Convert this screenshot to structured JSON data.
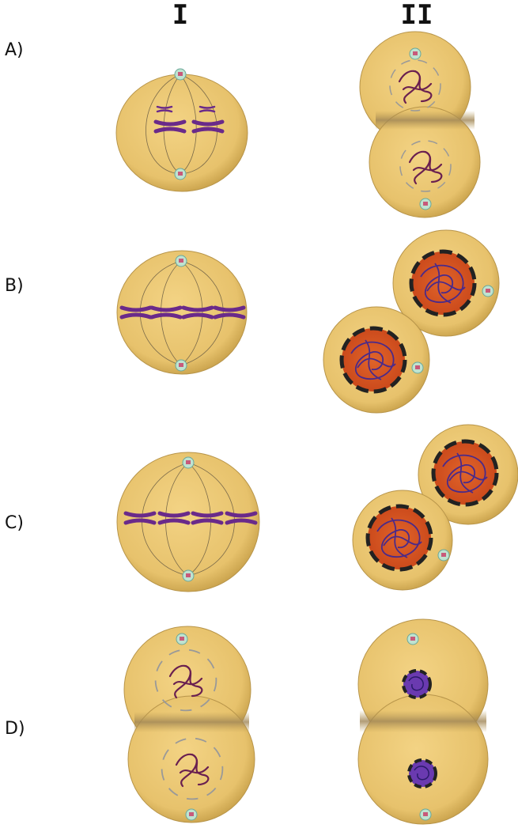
{
  "columns": [
    "I",
    "II"
  ],
  "options": [
    "A)",
    "B)",
    "C)",
    "D)"
  ]
}
